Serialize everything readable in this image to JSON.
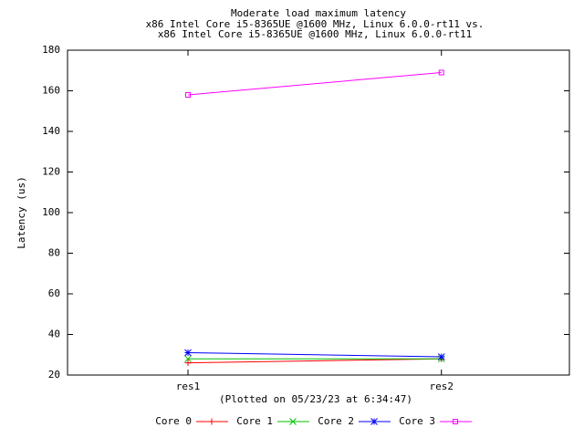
{
  "chart_data": {
    "type": "line",
    "title": [
      "Moderate load maximum latency",
      "x86 Intel Core i5-8365UE @1600 MHz, Linux 6.0.0-rt11 vs.",
      "x86 Intel Core i5-8365UE @1600 MHz, Linux 6.0.0-rt11"
    ],
    "ylabel": "Latency (us)",
    "xlabel": "(Plotted on 05/23/23 at 6:34:47)",
    "categories": [
      "res1",
      "res2"
    ],
    "series": [
      {
        "name": "Core 0",
        "color": "#ff0000",
        "marker": "plus",
        "values": [
          26,
          28
        ]
      },
      {
        "name": "Core 1",
        "color": "#00c000",
        "marker": "cross",
        "values": [
          28,
          28
        ]
      },
      {
        "name": "Core 2",
        "color": "#0000ff",
        "marker": "star",
        "values": [
          31,
          29
        ]
      },
      {
        "name": "Core 3",
        "color": "#ff00ff",
        "marker": "square",
        "values": [
          158,
          169
        ]
      }
    ],
    "ylim": [
      20,
      180
    ],
    "yticks": [
      20,
      40,
      60,
      80,
      100,
      120,
      140,
      160,
      180
    ],
    "grid": false,
    "legend": "bottom"
  }
}
